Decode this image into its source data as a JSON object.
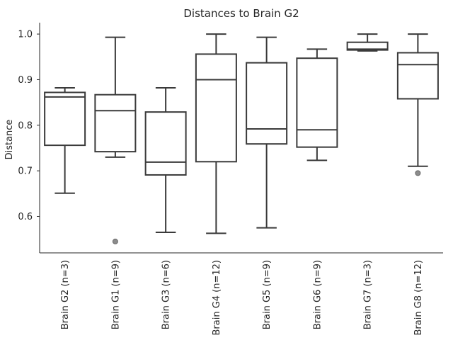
{
  "chart_data": {
    "type": "box",
    "title": "Distances to Brain G2",
    "xlabel": "",
    "ylabel": "Distance",
    "ylim": [
      0.52,
      1.025
    ],
    "yticks": [
      0.6,
      0.7,
      0.8,
      0.9,
      1.0
    ],
    "ytick_labels": [
      "0.6",
      "0.7",
      "0.8",
      "0.9",
      "1.0"
    ],
    "grid": false,
    "categories": [
      "Brain G2 (n=3)",
      "Brain G1 (n=9)",
      "Brain G3 (n=6)",
      "Brain G4 (n=12)",
      "Brain G5 (n=9)",
      "Brain G6 (n=9)",
      "Brain G7 (n=3)",
      "Brain G8 (n=12)"
    ],
    "boxes": [
      {
        "whislo": 0.651,
        "q1": 0.756,
        "med": 0.862,
        "q3": 0.872,
        "whishi": 0.882,
        "fliers": []
      },
      {
        "whislo": 0.73,
        "q1": 0.742,
        "med": 0.832,
        "q3": 0.867,
        "whishi": 0.993,
        "fliers": [
          0.545
        ]
      },
      {
        "whislo": 0.565,
        "q1": 0.691,
        "med": 0.719,
        "q3": 0.829,
        "whishi": 0.882,
        "fliers": []
      },
      {
        "whislo": 0.563,
        "q1": 0.72,
        "med": 0.9,
        "q3": 0.956,
        "whishi": 1.0,
        "fliers": []
      },
      {
        "whislo": 0.575,
        "q1": 0.759,
        "med": 0.792,
        "q3": 0.937,
        "whishi": 0.993,
        "fliers": []
      },
      {
        "whislo": 0.723,
        "q1": 0.752,
        "med": 0.79,
        "q3": 0.947,
        "whishi": 0.967,
        "fliers": []
      },
      {
        "whislo": 0.963,
        "q1": 0.965,
        "med": 0.967,
        "q3": 0.982,
        "whishi": 1.0,
        "fliers": []
      },
      {
        "whislo": 0.71,
        "q1": 0.858,
        "med": 0.933,
        "q3": 0.959,
        "whishi": 1.0,
        "fliers": [
          0.695
        ]
      }
    ]
  }
}
